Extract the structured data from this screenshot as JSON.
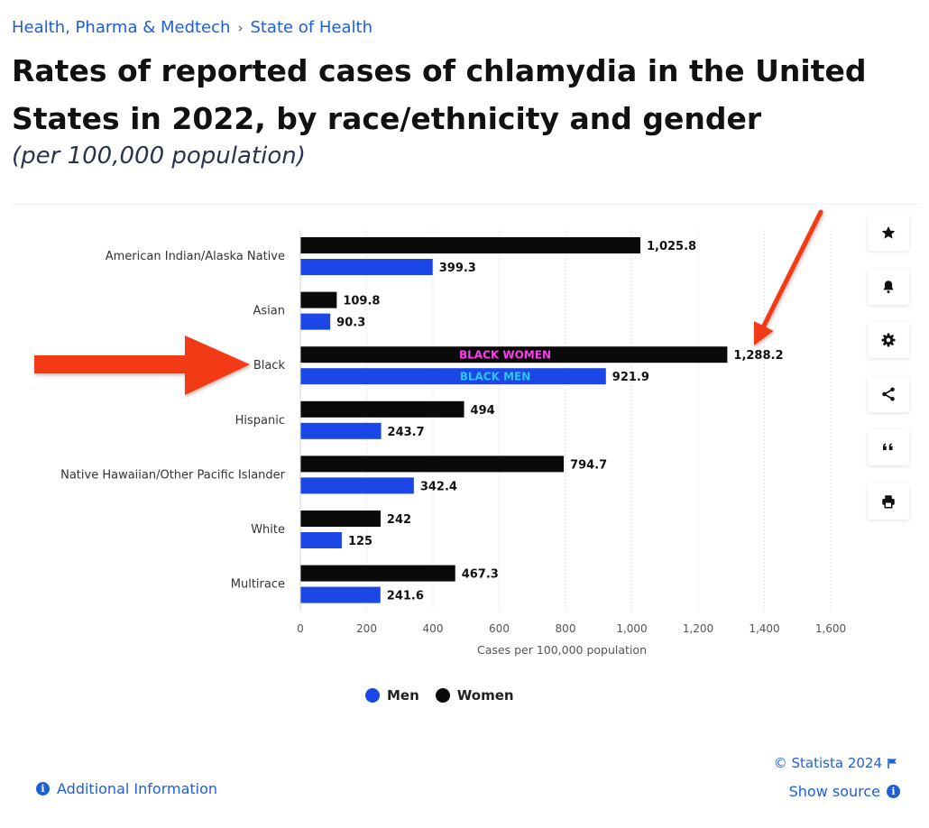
{
  "breadcrumb": {
    "first": "Health, Pharma & Medtech",
    "separator": "›",
    "second": "State of Health"
  },
  "title": "Rates of reported cases of chlamydia in the United States in 2022, by race/ethnicity and gender",
  "subtitle": "(per 100,000 population)",
  "tools": [
    {
      "name": "star-icon"
    },
    {
      "name": "bell-icon"
    },
    {
      "name": "gear-icon"
    },
    {
      "name": "share-icon"
    },
    {
      "name": "quote-icon"
    },
    {
      "name": "print-icon"
    }
  ],
  "legend": {
    "men": "Men",
    "women": "Women"
  },
  "credit": "© Statista 2024",
  "show_source": "Show source",
  "additional_info": "Additional Information",
  "annotations": {
    "black_women": "BLACK WOMEN",
    "black_men": "BLACK MEN"
  },
  "colors": {
    "men": "#1a47e6",
    "women": "#0a0a0a",
    "arrow": "#f23a16",
    "annot_women": "#ff3cf0",
    "annot_men": "#28c8ff",
    "link": "#1f5fd6"
  },
  "chart_data": {
    "type": "bar",
    "orientation": "horizontal",
    "categories": [
      "American Indian/Alaska Native",
      "Asian",
      "Black",
      "Hispanic",
      "Native Hawaiian/Other Pacific Islander",
      "White",
      "Multirace"
    ],
    "series": [
      {
        "name": "Women",
        "values": [
          1025.8,
          109.8,
          1288.2,
          494,
          794.7,
          242,
          467.3
        ],
        "labels": [
          "1,025.8",
          "109.8",
          "1,288.2",
          "494",
          "794.7",
          "242",
          "467.3"
        ]
      },
      {
        "name": "Men",
        "values": [
          399.3,
          90.3,
          921.9,
          243.7,
          342.4,
          125,
          241.6
        ],
        "labels": [
          "399.3",
          "90.3",
          "921.9",
          "243.7",
          "342.4",
          "125",
          "241.6"
        ]
      }
    ],
    "xlabel": "Cases per 100,000 population",
    "xlim": [
      0,
      1600
    ],
    "xticks": [
      0,
      200,
      400,
      600,
      800,
      1000,
      1200,
      1400,
      1600
    ],
    "xtick_labels": [
      "0",
      "200",
      "400",
      "600",
      "800",
      "1,000",
      "1,200",
      "1,400",
      "1,600"
    ],
    "grid": "vertical",
    "legend_position": "bottom"
  }
}
